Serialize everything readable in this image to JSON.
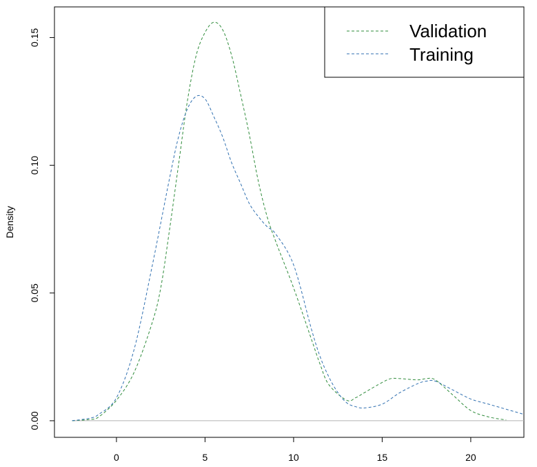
{
  "chart_data": {
    "type": "line",
    "title": "",
    "xlabel": "",
    "ylabel": "Density",
    "xlim": [
      -3.5,
      23
    ],
    "ylim": [
      -0.0065,
      0.162
    ],
    "x_ticks": [
      0,
      5,
      10,
      15,
      20
    ],
    "x_tick_labels": [
      "0",
      "5",
      "10",
      "15",
      "20"
    ],
    "y_ticks": [
      0.0,
      0.05,
      0.1,
      0.15
    ],
    "y_tick_labels": [
      "0.00",
      "0.05",
      "0.10",
      "0.15"
    ],
    "baseline": 0,
    "baseline_color": "#b3b3b3",
    "legend": {
      "position": "top-right",
      "entries": [
        "Validation",
        "Training"
      ]
    },
    "series": [
      {
        "name": "Validation",
        "color": "#2e8b3a",
        "dash": "dashed",
        "x": [
          -2.5,
          -1.5,
          -1,
          0,
          1,
          2,
          2.5,
          3,
          3.5,
          4,
          4.5,
          5,
          5.5,
          6,
          6.5,
          7,
          7.5,
          8,
          8.5,
          9,
          10,
          11,
          11.5,
          12,
          13,
          13.5,
          14,
          15,
          15.5,
          16,
          17,
          17.5,
          18,
          19,
          20,
          21,
          22
        ],
        "values": [
          0.0,
          0.0005,
          0.0015,
          0.008,
          0.019,
          0.038,
          0.052,
          0.075,
          0.1,
          0.125,
          0.143,
          0.152,
          0.156,
          0.153,
          0.143,
          0.128,
          0.112,
          0.094,
          0.08,
          0.07,
          0.052,
          0.032,
          0.022,
          0.014,
          0.008,
          0.009,
          0.011,
          0.015,
          0.0165,
          0.0165,
          0.016,
          0.0165,
          0.016,
          0.01,
          0.004,
          0.0015,
          0.0003
        ]
      },
      {
        "name": "Training",
        "color": "#2f6fb0",
        "dash": "dashed",
        "x": [
          -2.5,
          -1.5,
          -1,
          0,
          1,
          2,
          3,
          3.5,
          4,
          4.5,
          5,
          5.5,
          6,
          6.5,
          7,
          7.5,
          8,
          8.5,
          9,
          10,
          11,
          11.5,
          12,
          12.5,
          13,
          13.5,
          14,
          15,
          16,
          17,
          17.5,
          18,
          19,
          20,
          21,
          22,
          23
        ],
        "values": [
          0.0,
          0.001,
          0.0025,
          0.009,
          0.028,
          0.06,
          0.095,
          0.111,
          0.122,
          0.127,
          0.126,
          0.119,
          0.111,
          0.101,
          0.093,
          0.085,
          0.08,
          0.076,
          0.073,
          0.061,
          0.036,
          0.025,
          0.017,
          0.011,
          0.007,
          0.0055,
          0.005,
          0.0065,
          0.011,
          0.0145,
          0.0155,
          0.0155,
          0.012,
          0.0085,
          0.0065,
          0.0045,
          0.0025
        ]
      }
    ]
  }
}
